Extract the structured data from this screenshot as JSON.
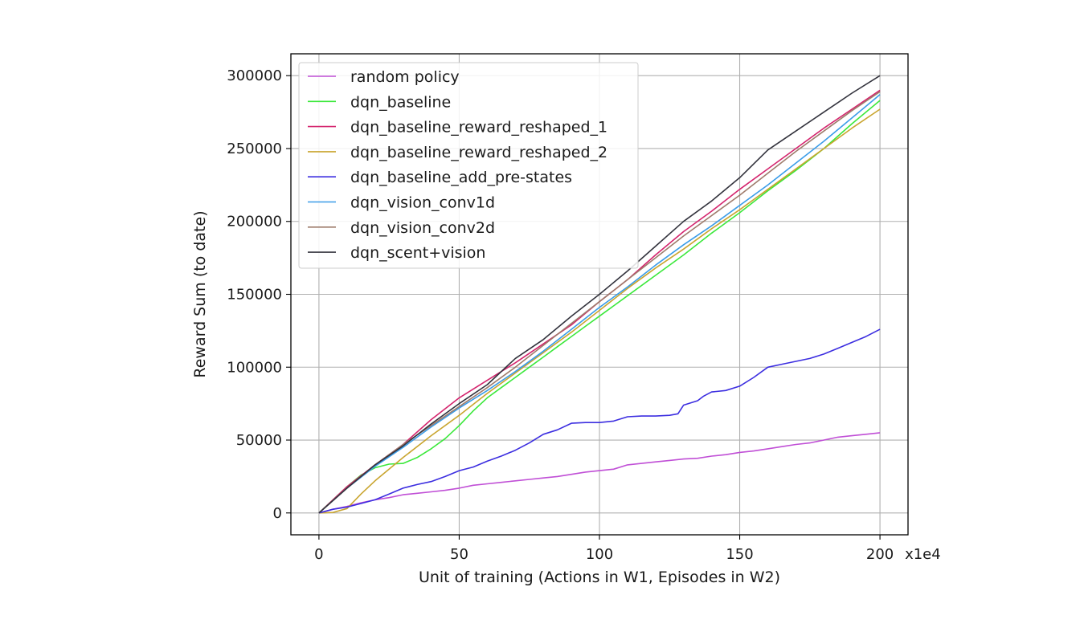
{
  "chart_data": {
    "type": "line",
    "title": "",
    "xlabel": "Unit of training (Actions in W1, Episodes in W2)",
    "ylabel": "Reward Sum (to date)",
    "x_scale_label": "x1e4",
    "xlim": [
      -10,
      210
    ],
    "ylim": [
      -15000,
      315000
    ],
    "xticks": [
      0,
      50,
      100,
      150,
      200
    ],
    "yticks": [
      0,
      50000,
      100000,
      150000,
      200000,
      250000,
      300000
    ],
    "grid": true,
    "legend_position": "upper left",
    "series": [
      {
        "name": "random policy",
        "color": "#c04fd6",
        "x": [
          0,
          5,
          10,
          15,
          20,
          25,
          30,
          35,
          40,
          45,
          50,
          55,
          60,
          65,
          70,
          75,
          80,
          85,
          90,
          95,
          100,
          105,
          110,
          115,
          120,
          125,
          130,
          135,
          140,
          145,
          150,
          155,
          160,
          165,
          170,
          175,
          180,
          185,
          190,
          195,
          200
        ],
        "y": [
          0,
          2500,
          4500,
          7000,
          9000,
          10500,
          12500,
          13500,
          14500,
          15500,
          17000,
          19000,
          20000,
          21000,
          22000,
          23000,
          24000,
          25000,
          26500,
          28000,
          29000,
          30000,
          33000,
          34000,
          35000,
          36000,
          37000,
          37500,
          39000,
          40000,
          41500,
          42500,
          44000,
          45500,
          47000,
          48000,
          50000,
          52000,
          53000,
          54000,
          55000
        ]
      },
      {
        "name": "dqn_baseline",
        "color": "#3be83b",
        "x": [
          0,
          5,
          10,
          15,
          20,
          25,
          30,
          35,
          40,
          45,
          50,
          55,
          60,
          65,
          70,
          75,
          80,
          85,
          90,
          95,
          100,
          110,
          120,
          130,
          140,
          150,
          160,
          170,
          180,
          190,
          200
        ],
        "y": [
          0,
          9000,
          18000,
          26000,
          31000,
          33500,
          34000,
          38000,
          44000,
          51000,
          60000,
          70000,
          79000,
          86000,
          93000,
          100000,
          107000,
          114000,
          121000,
          128000,
          135000,
          149000,
          163000,
          177000,
          192000,
          206000,
          221000,
          235000,
          250000,
          267000,
          283000
        ]
      },
      {
        "name": "dqn_baseline_reward_reshaped_1",
        "color": "#d4246d",
        "x": [
          0,
          10,
          20,
          30,
          40,
          50,
          60,
          70,
          80,
          90,
          100,
          110,
          120,
          130,
          140,
          150,
          160,
          170,
          180,
          190,
          200
        ],
        "y": [
          0,
          18000,
          33000,
          47000,
          64000,
          79000,
          91000,
          103000,
          116000,
          129000,
          145000,
          160000,
          177000,
          193000,
          207000,
          222000,
          236000,
          250000,
          264000,
          277000,
          290000
        ]
      },
      {
        "name": "dqn_baseline_reward_reshaped_2",
        "color": "#c9a52f",
        "x": [
          0,
          5,
          10,
          15,
          20,
          30,
          40,
          50,
          60,
          70,
          80,
          90,
          100,
          110,
          120,
          130,
          140,
          150,
          160,
          170,
          180,
          190,
          200
        ],
        "y": [
          0,
          300,
          3000,
          13000,
          22000,
          38000,
          53000,
          67000,
          82000,
          96000,
          110000,
          124000,
          139000,
          154000,
          168000,
          181000,
          195000,
          208000,
          222000,
          236000,
          250000,
          264000,
          277000
        ]
      },
      {
        "name": "dqn_baseline_add_pre-states",
        "color": "#3c2ee0",
        "x": [
          0,
          5,
          10,
          15,
          20,
          25,
          30,
          35,
          40,
          45,
          50,
          55,
          60,
          65,
          70,
          75,
          80,
          85,
          90,
          95,
          100,
          105,
          110,
          115,
          120,
          125,
          128,
          130,
          135,
          137,
          140,
          145,
          150,
          155,
          160,
          165,
          170,
          175,
          180,
          185,
          190,
          195,
          200
        ],
        "y": [
          0,
          2500,
          4000,
          6500,
          9000,
          13000,
          17000,
          19500,
          21500,
          25000,
          29000,
          31500,
          35500,
          39000,
          43000,
          48000,
          54000,
          57000,
          61500,
          62000,
          62000,
          63000,
          66000,
          66500,
          66500,
          67000,
          68000,
          74000,
          77000,
          80000,
          83000,
          84000,
          87000,
          93000,
          100000,
          102000,
          104000,
          106000,
          109000,
          113000,
          117000,
          121000,
          126000
        ]
      },
      {
        "name": "dqn_vision_conv1d",
        "color": "#3a9ce8",
        "x": [
          0,
          10,
          20,
          30,
          40,
          50,
          60,
          70,
          80,
          90,
          100,
          110,
          120,
          130,
          140,
          150,
          160,
          170,
          180,
          190,
          200
        ],
        "y": [
          0,
          17000,
          32000,
          45000,
          59000,
          72000,
          84000,
          97000,
          111000,
          126000,
          141000,
          155000,
          170000,
          184000,
          197000,
          211000,
          225000,
          240000,
          255000,
          271000,
          287000
        ]
      },
      {
        "name": "dqn_vision_conv2d",
        "color": "#9e7b6b",
        "x": [
          0,
          10,
          20,
          30,
          40,
          50,
          60,
          70,
          80,
          90,
          100,
          110,
          120,
          130,
          140,
          150,
          160,
          170,
          180,
          190,
          200
        ],
        "y": [
          0,
          17000,
          33000,
          47000,
          60000,
          73000,
          86000,
          100000,
          115000,
          130000,
          145000,
          160000,
          175000,
          190000,
          204000,
          218000,
          233000,
          248000,
          262000,
          276000,
          289000
        ]
      },
      {
        "name": "dqn_scent+vision",
        "color": "#33333d",
        "x": [
          0,
          10,
          20,
          30,
          40,
          50,
          60,
          70,
          80,
          90,
          100,
          110,
          120,
          130,
          140,
          150,
          160,
          170,
          180,
          190,
          200
        ],
        "y": [
          0,
          17000,
          33000,
          46000,
          61000,
          75000,
          88000,
          106000,
          119000,
          135000,
          150000,
          166000,
          183000,
          200000,
          214000,
          230000,
          249000,
          262000,
          275000,
          288000,
          300000
        ]
      }
    ]
  }
}
